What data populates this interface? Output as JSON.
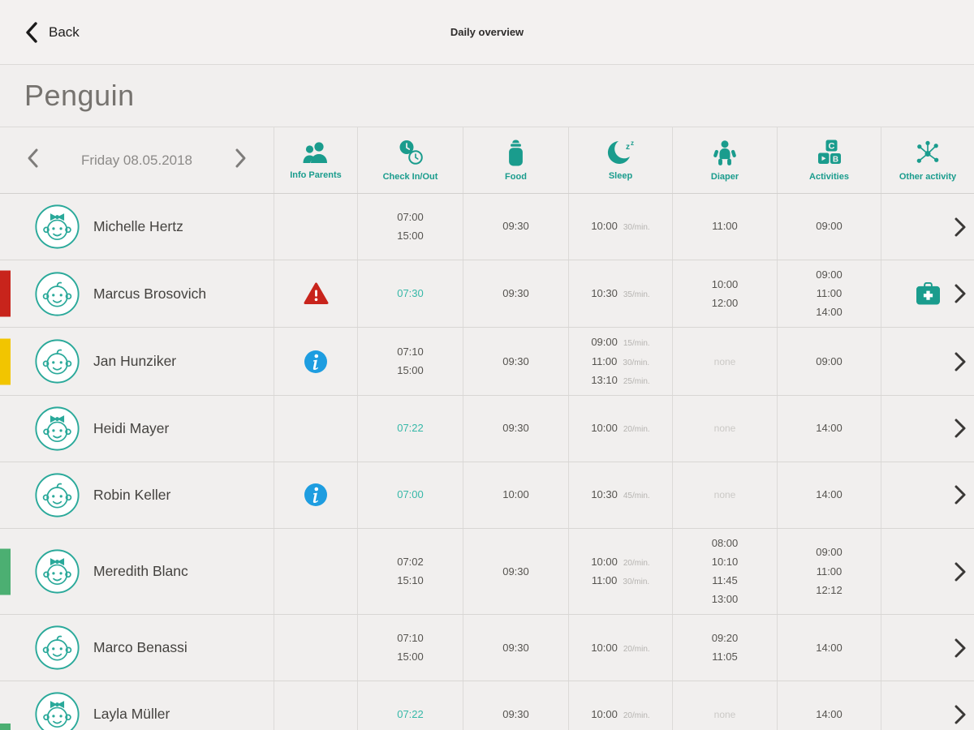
{
  "topbar": {
    "back": "Back",
    "title": "Daily overview"
  },
  "group_name": "Penguin",
  "date": "Friday 08.05.2018",
  "columns": {
    "info": "Info Parents",
    "check": "Check In/Out",
    "food": "Food",
    "sleep": "Sleep",
    "diaper": "Diaper",
    "activities": "Activities",
    "other": "Other activity"
  },
  "none_label": "none",
  "colors": {
    "accent": "#1a9c8d",
    "accent_light": "#36b8a8",
    "red": "#c8241c",
    "yellow": "#f2c500",
    "green": "#4caf72",
    "blue": "#1e9de0"
  },
  "rows": [
    {
      "name": "Michelle Hertz",
      "gender": "girl",
      "flag": null,
      "info": null,
      "check": [
        "07:00",
        "15:00"
      ],
      "check_active": false,
      "food": [
        "09:30"
      ],
      "sleep": [
        [
          "10:00",
          "30/min."
        ]
      ],
      "diaper": [
        "11:00"
      ],
      "activities": [
        "09:00"
      ],
      "other": null
    },
    {
      "name": "Marcus Brosovich",
      "gender": "boy",
      "flag": "red",
      "info": "warning",
      "check": [
        "07:30"
      ],
      "check_active": true,
      "food": [
        "09:30"
      ],
      "sleep": [
        [
          "10:30",
          "35/min."
        ]
      ],
      "diaper": [
        "10:00",
        "12:00"
      ],
      "activities": [
        "09:00",
        "11:00",
        "14:00"
      ],
      "other": "firstaid"
    },
    {
      "name": "Jan Hunziker",
      "gender": "boy",
      "flag": "yellow",
      "info": "info",
      "check": [
        "07:10",
        "15:00"
      ],
      "check_active": false,
      "food": [
        "09:30"
      ],
      "sleep": [
        [
          "09:00",
          "15/min."
        ],
        [
          "11:00",
          "30/min."
        ],
        [
          "13:10",
          "25/min."
        ]
      ],
      "diaper": [],
      "activities": [
        "09:00"
      ],
      "other": null
    },
    {
      "name": "Heidi Mayer",
      "gender": "girl",
      "flag": null,
      "info": null,
      "check": [
        "07:22"
      ],
      "check_active": true,
      "food": [
        "09:30"
      ],
      "sleep": [
        [
          "10:00",
          "20/min."
        ]
      ],
      "diaper": [],
      "activities": [
        "14:00"
      ],
      "other": null
    },
    {
      "name": "Robin Keller",
      "gender": "boy",
      "flag": null,
      "info": "info",
      "check": [
        "07:00"
      ],
      "check_active": true,
      "food": [
        "10:00"
      ],
      "sleep": [
        [
          "10:30",
          "45/min."
        ]
      ],
      "diaper": [],
      "activities": [
        "14:00"
      ],
      "other": null
    },
    {
      "name": "Meredith Blanc",
      "gender": "girl",
      "flag": "green",
      "info": null,
      "check": [
        "07:02",
        "15:10"
      ],
      "check_active": false,
      "food": [
        "09:30"
      ],
      "sleep": [
        [
          "10:00",
          "20/min."
        ],
        [
          "11:00",
          "30/min."
        ]
      ],
      "diaper": [
        "08:00",
        "10:10",
        "11:45",
        "13:00"
      ],
      "activities": [
        "09:00",
        "11:00",
        "12:12"
      ],
      "other": null
    },
    {
      "name": "Marco Benassi",
      "gender": "boy",
      "flag": null,
      "info": null,
      "check": [
        "07:10",
        "15:00"
      ],
      "check_active": false,
      "food": [
        "09:30"
      ],
      "sleep": [
        [
          "10:00",
          "20/min."
        ]
      ],
      "diaper": [
        "09:20",
        "11:05"
      ],
      "activities": [
        "14:00"
      ],
      "other": null
    },
    {
      "name": "Layla Müller",
      "gender": "girl",
      "flag": null,
      "info": null,
      "check": [
        "07:22"
      ],
      "check_active": true,
      "food": [
        "09:30"
      ],
      "sleep": [
        [
          "10:00",
          "20/min."
        ]
      ],
      "diaper": [],
      "activities": [
        "14:00"
      ],
      "other": null
    }
  ]
}
